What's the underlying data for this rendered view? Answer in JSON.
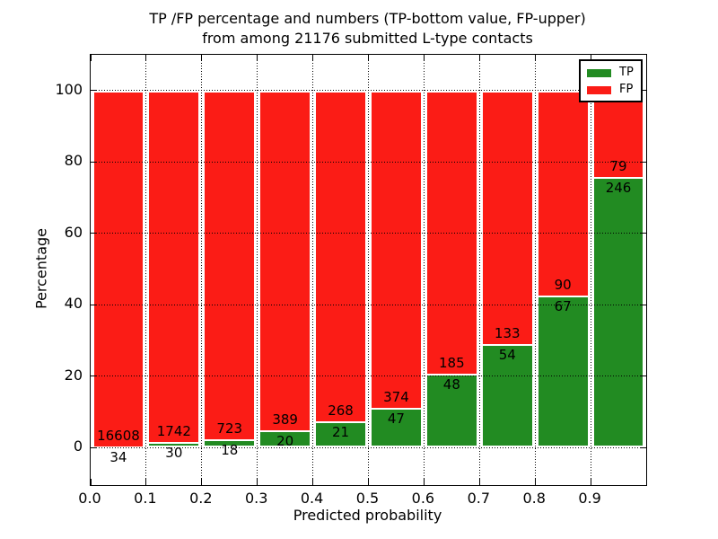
{
  "chart_data": {
    "type": "bar",
    "subtype": "stacked-percentage-histogram",
    "title_line1": "TP /FP percentage and numbers (TP-bottom value, FP-upper)",
    "title_line2": "from among 21176 submitted L-type contacts",
    "total_submitted": 21176,
    "xlabel": "Predicted probability",
    "ylabel": "Percentage",
    "xlim": [
      0.0,
      1.0
    ],
    "ylim": [
      -10.5,
      110
    ],
    "bin_width": 0.1,
    "bin_starts": [
      0.0,
      0.1,
      0.2,
      0.3,
      0.4,
      0.5,
      0.6,
      0.7,
      0.8,
      0.9
    ],
    "series": [
      {
        "name": "TP",
        "color": "#228b22",
        "counts": [
          34,
          30,
          18,
          20,
          21,
          47,
          48,
          54,
          67,
          246
        ]
      },
      {
        "name": "FP",
        "color": "#fb1c16",
        "counts": [
          16608,
          1742,
          723,
          389,
          268,
          374,
          185,
          133,
          90,
          79
        ]
      }
    ],
    "tp_percent": [
      0.2,
      1.69,
      2.43,
      4.89,
      7.27,
      11.16,
      20.6,
      28.88,
      42.68,
      75.69
    ],
    "yticks": [
      0,
      20,
      40,
      60,
      80,
      100
    ],
    "xtick_labels": [
      "0.0",
      "0.1",
      "0.2",
      "0.3",
      "0.4",
      "0.5",
      "0.6",
      "0.7",
      "0.8",
      "0.9"
    ],
    "grid": {
      "style": "dotted",
      "color": "#000000",
      "over_bars": true
    },
    "bar_edge_color": "#ffffff",
    "legend": {
      "position": "upper-right",
      "entries": [
        {
          "label": "TP",
          "color": "#228b22"
        },
        {
          "label": "FP",
          "color": "#fb1c16"
        }
      ]
    }
  }
}
